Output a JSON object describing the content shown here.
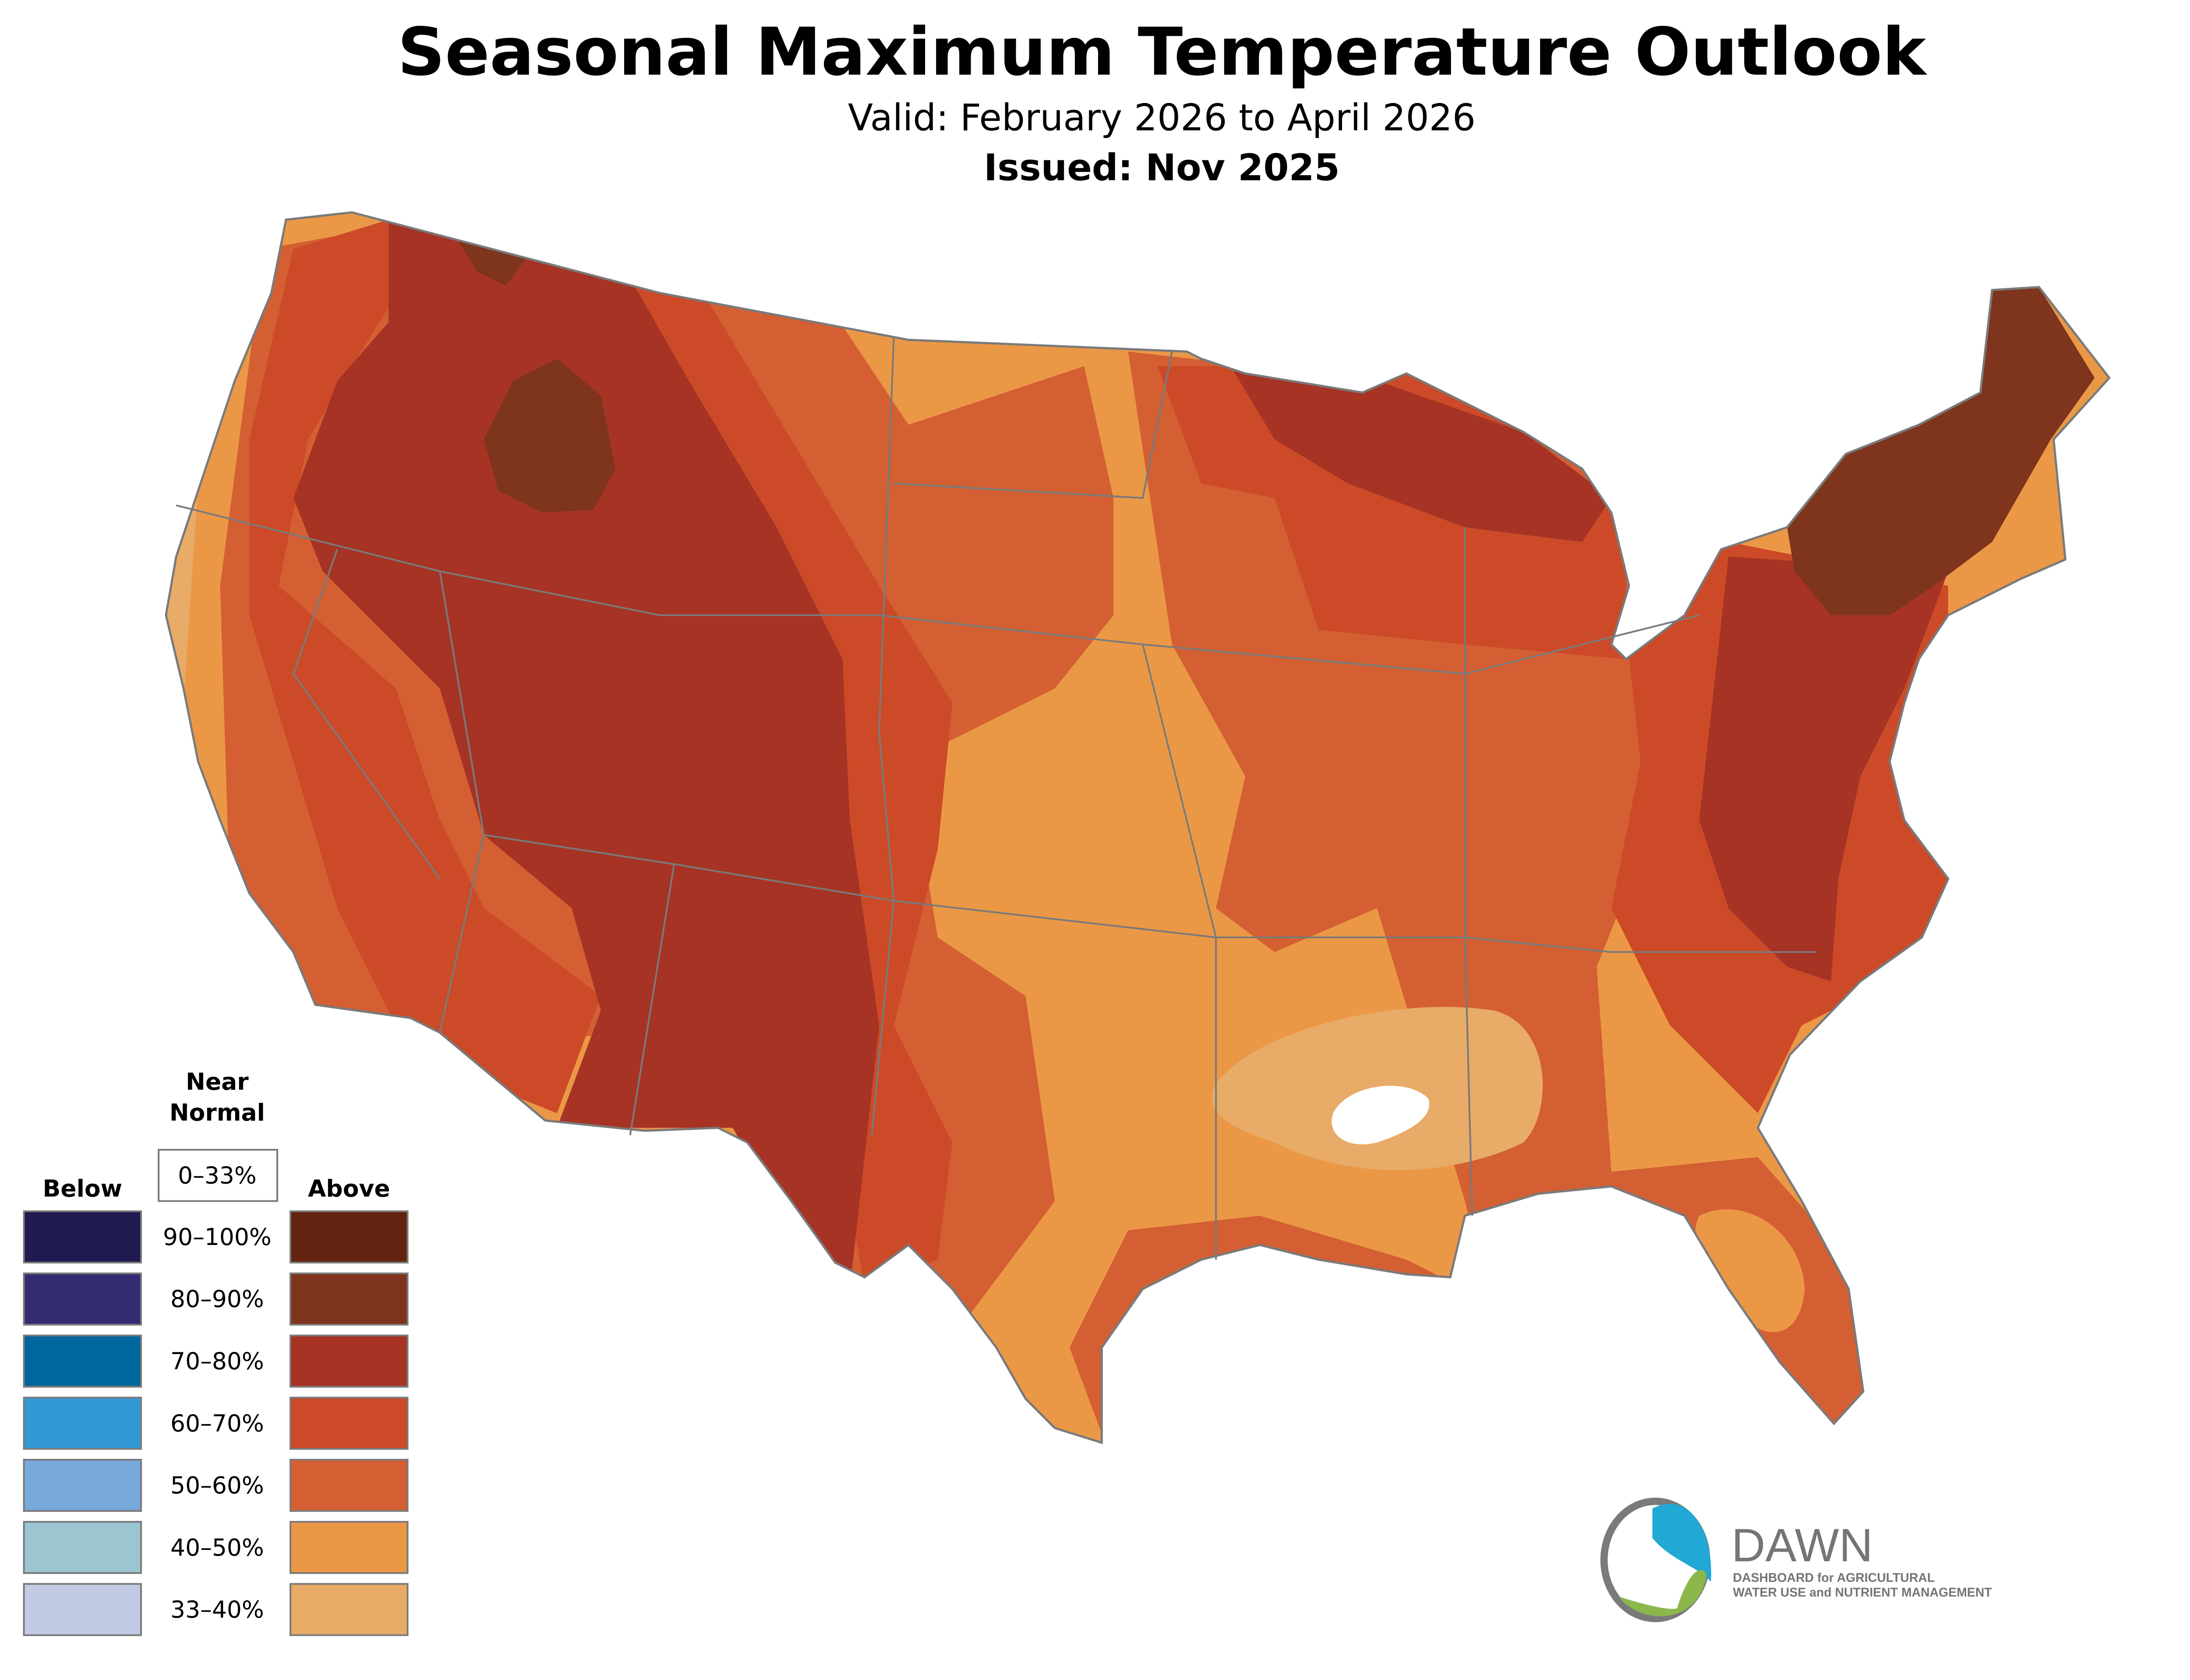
{
  "header": {
    "title": "Seasonal Maximum Temperature Outlook",
    "valid": "Valid: February 2026 to April 2026",
    "issued": "Issued: Nov 2025"
  },
  "legend": {
    "near_normal_line1": "Near",
    "near_normal_line2": "Normal",
    "near_normal_range": "0–33%",
    "below_label": "Below",
    "above_label": "Above",
    "rows": [
      {
        "range": "90–100%",
        "below_color": "#1f1a4f",
        "above_color": "#622410"
      },
      {
        "range": "80–90%",
        "below_color": "#332c73",
        "above_color": "#7e341d"
      },
      {
        "range": "70–80%",
        "below_color": "#00669e",
        "above_color": "#a63324"
      },
      {
        "range": "60–70%",
        "below_color": "#3399d4",
        "above_color": "#cc4a27"
      },
      {
        "range": "50–60%",
        "below_color": "#77a9db",
        "above_color": "#d35f33"
      },
      {
        "range": "40–50%",
        "below_color": "#9cc5d2",
        "above_color": "#eb9846"
      },
      {
        "range": "33–40%",
        "below_color": "#c3cae4",
        "above_color": "#e8ab68"
      }
    ]
  },
  "logo": {
    "name": "DAWN",
    "line1": "DASHBOARD for AGRICULTURAL",
    "line2": "WATER USE and NUTRIENT MANAGEMENT"
  }
}
